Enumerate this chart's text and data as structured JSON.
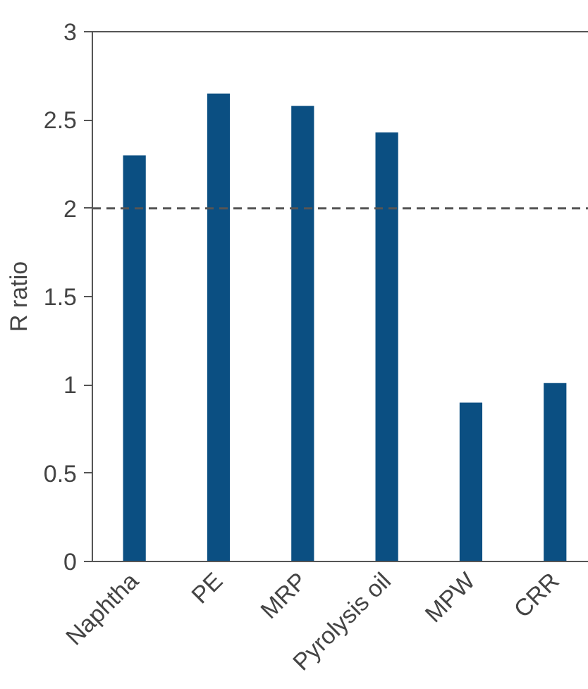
{
  "chart_data": {
    "type": "bar",
    "ylabel": "R ratio",
    "categories": [
      "Naphtha",
      "PE",
      "MRP",
      "Pyrolysis oil",
      "MPW",
      "CRR"
    ],
    "values": [
      2.3,
      2.65,
      2.58,
      2.43,
      0.9,
      1.01
    ],
    "color": "#0b4f82",
    "ylim": [
      0,
      3
    ],
    "yticks": [
      0,
      0.5,
      1,
      1.5,
      2,
      2.5,
      3
    ],
    "ref_lines": [
      {
        "axis": "y",
        "value": 2,
        "label": null,
        "color": "#555555",
        "line_style": "dashed"
      }
    ],
    "grid": false
  }
}
